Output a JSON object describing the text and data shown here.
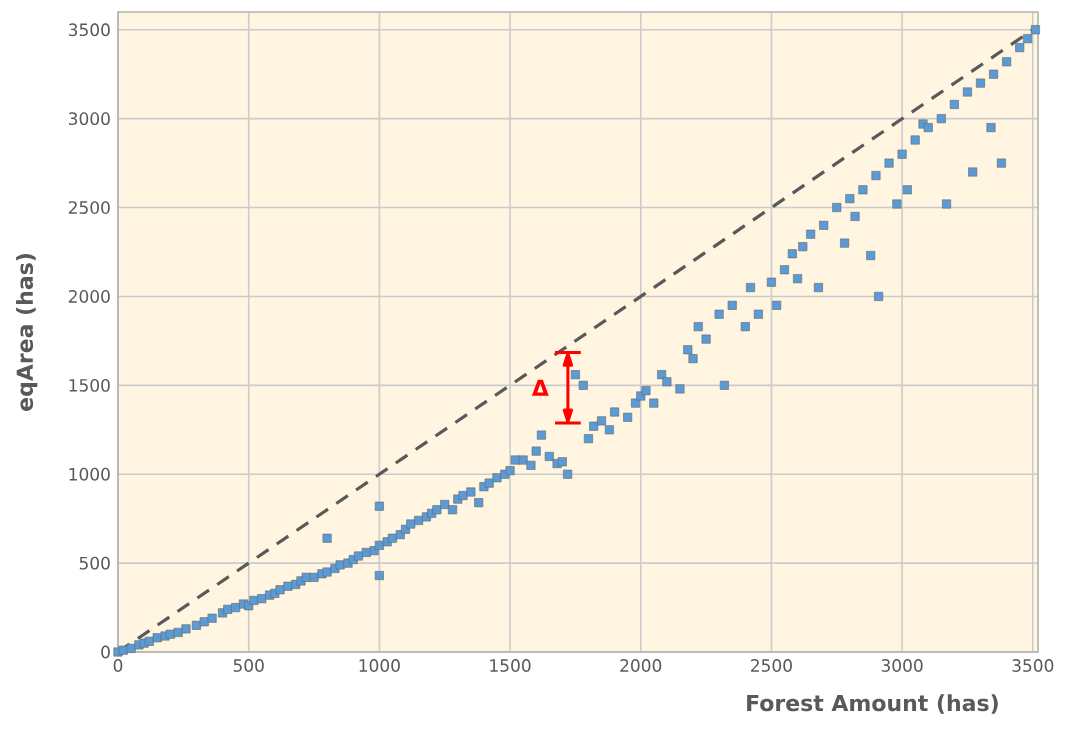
{
  "chart_data": {
    "type": "scatter",
    "xlabel": "Forest Amount (has)",
    "ylabel": "eqArea (has)",
    "xlim": [
      0,
      3520
    ],
    "ylim": [
      0,
      3600
    ],
    "xticks": [
      0,
      500,
      1000,
      1500,
      2000,
      2500,
      3000,
      3500
    ],
    "yticks": [
      0,
      500,
      1000,
      1500,
      2000,
      2500,
      3000,
      3500
    ],
    "grid": true,
    "annotations": [
      "Δ"
    ],
    "series": [
      {
        "color": "#5b9bd5",
        "marker": "square",
        "x": [
          0,
          20,
          50,
          80,
          100,
          120,
          150,
          180,
          200,
          230,
          260,
          300,
          330,
          360,
          400,
          420,
          450,
          480,
          500,
          520,
          550,
          580,
          600,
          620,
          650,
          680,
          700,
          720,
          750,
          780,
          800,
          800,
          830,
          850,
          880,
          900,
          920,
          950,
          980,
          1000,
          1000,
          1000,
          1030,
          1050,
          1080,
          1100,
          1120,
          1150,
          1180,
          1200,
          1220,
          1250,
          1280,
          1300,
          1320,
          1350,
          1380,
          1400,
          1420,
          1450,
          1480,
          1500,
          1520,
          1550,
          1580,
          1600,
          1620,
          1650,
          1680,
          1700,
          1720,
          1750,
          1780,
          1800,
          1820,
          1850,
          1880,
          1900,
          1950,
          1980,
          2000,
          2020,
          2050,
          2080,
          2100,
          2150,
          2180,
          2200,
          2220,
          2250,
          2300,
          2320,
          2350,
          2400,
          2420,
          2450,
          2500,
          2520,
          2550,
          2580,
          2600,
          2620,
          2650,
          2680,
          2700,
          2750,
          2780,
          2800,
          2820,
          2850,
          2880,
          2900,
          2910,
          2950,
          2980,
          3000,
          3020,
          3050,
          3080,
          3100,
          3150,
          3170,
          3200,
          3250,
          3270,
          3300,
          3340,
          3350,
          3380,
          3400,
          3450,
          3480,
          3510
        ],
        "values": [
          0,
          10,
          20,
          40,
          50,
          60,
          80,
          90,
          100,
          110,
          130,
          150,
          170,
          190,
          220,
          240,
          250,
          270,
          260,
          290,
          300,
          320,
          330,
          350,
          370,
          380,
          400,
          420,
          420,
          440,
          450,
          640,
          470,
          490,
          500,
          520,
          540,
          560,
          570,
          600,
          430,
          820,
          620,
          640,
          660,
          690,
          720,
          740,
          760,
          780,
          800,
          830,
          800,
          860,
          880,
          900,
          840,
          930,
          950,
          980,
          1000,
          1020,
          1080,
          1080,
          1050,
          1130,
          1220,
          1100,
          1060,
          1070,
          1000,
          1560,
          1500,
          1200,
          1270,
          1300,
          1250,
          1350,
          1320,
          1400,
          1440,
          1470,
          1400,
          1560,
          1520,
          1480,
          1700,
          1650,
          1830,
          1760,
          1900,
          1500,
          1950,
          1830,
          2050,
          1900,
          2080,
          1950,
          2150,
          2240,
          2100,
          2280,
          2350,
          2050,
          2400,
          2500,
          2300,
          2550,
          2450,
          2600,
          2230,
          2680,
          2000,
          2750,
          2520,
          2800,
          2600,
          2880,
          2970,
          2950,
          3000,
          2520,
          3080,
          3150,
          2700,
          3200,
          2950,
          3250,
          2750,
          3320,
          3400,
          3450,
          3500
        ]
      },
      {
        "type": "line",
        "color": "#595959",
        "marker": "none",
        "line_style": "dashed",
        "x": [
          0,
          3520
        ],
        "values": [
          0,
          3520
        ]
      }
    ]
  }
}
